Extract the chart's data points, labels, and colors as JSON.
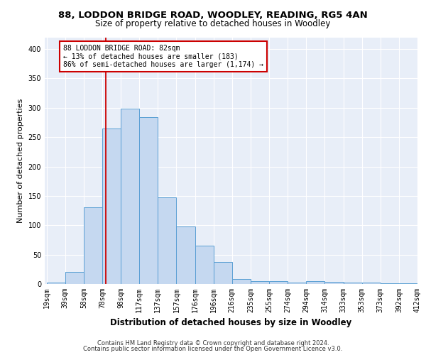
{
  "title1": "88, LODDON BRIDGE ROAD, WOODLEY, READING, RG5 4AN",
  "title2": "Size of property relative to detached houses in Woodley",
  "xlabel": "Distribution of detached houses by size in Woodley",
  "ylabel": "Number of detached properties",
  "footer1": "Contains HM Land Registry data © Crown copyright and database right 2024.",
  "footer2": "Contains public sector information licensed under the Open Government Licence v3.0.",
  "categories": [
    "19sqm",
    "39sqm",
    "58sqm",
    "78sqm",
    "98sqm",
    "117sqm",
    "137sqm",
    "157sqm",
    "176sqm",
    "196sqm",
    "216sqm",
    "235sqm",
    "255sqm",
    "274sqm",
    "294sqm",
    "314sqm",
    "333sqm",
    "353sqm",
    "373sqm",
    "392sqm",
    "412sqm"
  ],
  "values": [
    3,
    20,
    130,
    265,
    298,
    284,
    147,
    98,
    65,
    38,
    9,
    5,
    5,
    3,
    5,
    4,
    3,
    2,
    1,
    1
  ],
  "bar_color": "#c5d8f0",
  "bar_edge_color": "#5a9fd4",
  "vline_color": "#cc0000",
  "annotation_line1": "88 LODDON BRIDGE ROAD: 82sqm",
  "annotation_line2": "← 13% of detached houses are smaller (183)",
  "annotation_line3": "86% of semi-detached houses are larger (1,174) →",
  "annotation_box_color": "#cc0000",
  "ylim": [
    0,
    420
  ],
  "yticks": [
    0,
    50,
    100,
    150,
    200,
    250,
    300,
    350,
    400
  ],
  "bg_color": "#e8eef8",
  "grid_color": "#ffffff",
  "title1_fontsize": 9.5,
  "title2_fontsize": 8.5,
  "tick_fontsize": 7,
  "ylabel_fontsize": 8,
  "xlabel_fontsize": 8.5
}
